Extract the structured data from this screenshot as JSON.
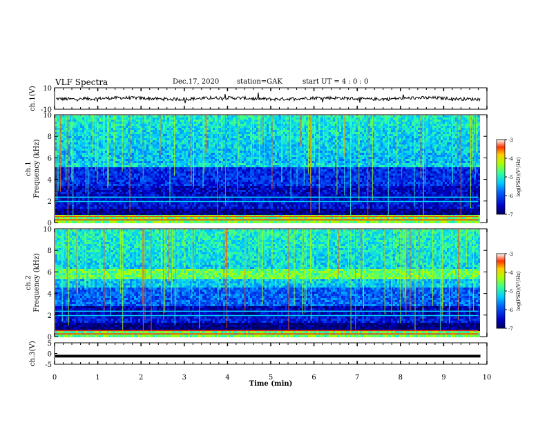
{
  "header": {
    "title": "VLF Spectra",
    "date": "Dec.17, 2020",
    "station": "station=GAK",
    "start": "start  UT =   4 : 0  : 0"
  },
  "chart_data": [
    {
      "type": "line",
      "name": "ch1-waveform",
      "ylabel": "ch.1(V)",
      "ylim": [
        -10,
        10
      ],
      "yticks": [
        "10",
        "-10"
      ],
      "xlim": [
        0,
        10
      ],
      "approx_level": 0
    },
    {
      "type": "heatmap",
      "name": "ch1-spectrogram",
      "ylabel_line1": "ch.1",
      "ylabel_line2": "Frequency (kHz)",
      "ylim": [
        0,
        10
      ],
      "yticks": [
        "0",
        "2",
        "4",
        "6",
        "8",
        "10"
      ],
      "xlim": [
        0,
        10
      ],
      "data_end_min": 9.8,
      "colorbar": {
        "label": "log(PSD)(V²/Hz)",
        "range": [
          -7,
          -3
        ],
        "ticks": [
          "-3",
          "-4",
          "-5",
          "-6",
          "-7"
        ]
      }
    },
    {
      "type": "heatmap",
      "name": "ch2-spectrogram",
      "ylabel_line1": "ch.2",
      "ylabel_line2": "Frequency (kHz)",
      "ylim": [
        0,
        10
      ],
      "yticks": [
        "0",
        "2",
        "4",
        "6",
        "8",
        "10"
      ],
      "xlim": [
        0,
        10
      ],
      "data_end_min": 9.8,
      "colorbar": {
        "label": "log(PSD)(V²/Hz)",
        "range": [
          -7,
          -3
        ],
        "ticks": [
          "-3",
          "-4",
          "-5",
          "-6",
          "-7"
        ]
      }
    },
    {
      "type": "line",
      "name": "ch3-waveform",
      "ylabel": "ch.3(V)",
      "ylim": [
        -5,
        5
      ],
      "yticks": [
        "5",
        "0",
        "-5"
      ],
      "xlim": [
        0,
        10
      ],
      "approx_level": -1.2
    }
  ],
  "xaxis": {
    "label": "Time (min)",
    "ticks": [
      "0",
      "1",
      "2",
      "3",
      "4",
      "5",
      "6",
      "7",
      "8",
      "9",
      "10"
    ]
  }
}
